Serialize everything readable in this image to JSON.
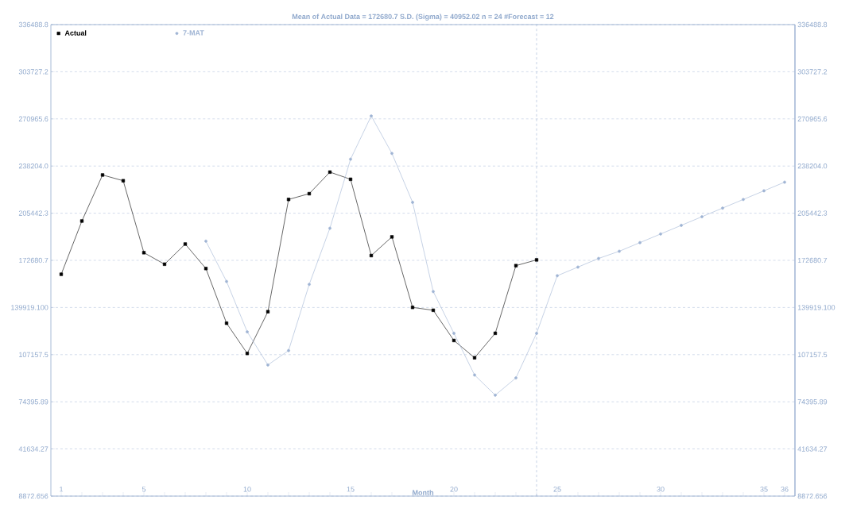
{
  "chart_data": {
    "type": "line",
    "title": "Mean of Actual Data = 172680.7 S.D. (Sigma) = 40952.02 n = 24 #Forecast = 12",
    "xlabel": "Month",
    "xlim": [
      0.5,
      36.5
    ],
    "xticks": [
      1,
      {
        "value": 2,
        "label": null
      },
      {
        "value": 3,
        "label": null
      },
      {
        "value": 4,
        "label": null
      },
      5,
      {
        "value": 6,
        "label": null
      },
      {
        "value": 7,
        "label": null
      },
      {
        "value": 8,
        "label": null
      },
      {
        "value": 9,
        "label": null
      },
      10,
      {
        "value": 11,
        "label": null
      },
      {
        "value": 12,
        "label": null
      },
      {
        "value": 13,
        "label": null
      },
      {
        "value": 14,
        "label": null
      },
      15,
      {
        "value": 16,
        "label": null
      },
      {
        "value": 17,
        "label": null
      },
      {
        "value": 18,
        "label": null
      },
      {
        "value": 19,
        "label": null
      },
      20,
      {
        "value": 21,
        "label": null
      },
      {
        "value": 22,
        "label": null
      },
      {
        "value": 23,
        "label": null
      },
      {
        "value": 24,
        "label": null
      },
      25,
      {
        "value": 26,
        "label": null
      },
      {
        "value": 27,
        "label": null
      },
      {
        "value": 28,
        "label": null
      },
      {
        "value": 29,
        "label": null
      },
      30,
      {
        "value": 31,
        "label": null
      },
      {
        "value": 32,
        "label": null
      },
      {
        "value": 33,
        "label": null
      },
      {
        "value": 34,
        "label": null
      },
      35,
      36
    ],
    "ylim": [
      8872.656,
      336488.8
    ],
    "yticks": [
      8872.656,
      41634.27,
      74395.89,
      107157.5,
      {
        "value": 139919.1,
        "label": "139919.100"
      },
      172680.7,
      205442.3,
      {
        "value": 238204.0,
        "label": "238204.0"
      },
      270965.6,
      303727.2,
      336488.8
    ],
    "y2lim": [
      8872.656,
      336488.8
    ],
    "y2ticks": [
      8872.656,
      41634.27,
      74395.89,
      107157.5,
      {
        "value": 139919.1,
        "label": "139919.100"
      },
      172680.7,
      205442.3,
      {
        "value": 238204.0,
        "label": "238204.0"
      },
      270965.6,
      303727.2,
      336488.8
    ],
    "grid": "y",
    "legend": "top left",
    "ref_lines": [
      {
        "axis": "x",
        "value": 24,
        "color": "#9fb4d4",
        "line_style": "dashed"
      }
    ],
    "series": [
      {
        "name": "Actual",
        "color": "#000000",
        "marker": "square",
        "x": [
          1,
          2,
          3,
          4,
          5,
          6,
          7,
          8,
          9,
          10,
          11,
          12,
          13,
          14,
          15,
          16,
          17,
          18,
          19,
          20,
          21,
          22,
          23,
          24
        ],
        "values": [
          163000,
          200000,
          232000,
          228000,
          178000,
          170000,
          184000,
          167000,
          129000,
          108000,
          137000,
          215000,
          219000,
          234000,
          229000,
          176000,
          189000,
          140000,
          138000,
          117000,
          105000,
          122000,
          169000,
          173000
        ]
      },
      {
        "name": "7-MAT",
        "color": "#9fb4d4",
        "marker": "circle",
        "x": [
          8,
          9,
          10,
          11,
          12,
          13,
          14,
          15,
          16,
          17,
          18,
          19,
          20,
          21,
          22,
          23,
          24,
          25,
          26,
          27,
          28,
          29,
          30,
          31,
          32,
          33,
          34,
          35,
          36
        ],
        "values": [
          186000,
          158000,
          123000,
          100000,
          110000,
          156000,
          195000,
          243000,
          273000,
          247000,
          213000,
          151000,
          122000,
          93000,
          79000,
          91000,
          122000,
          162000,
          168000,
          174000,
          179000,
          185000,
          191000,
          197000,
          203000,
          209000,
          215000,
          221000,
          227000
        ]
      }
    ]
  }
}
